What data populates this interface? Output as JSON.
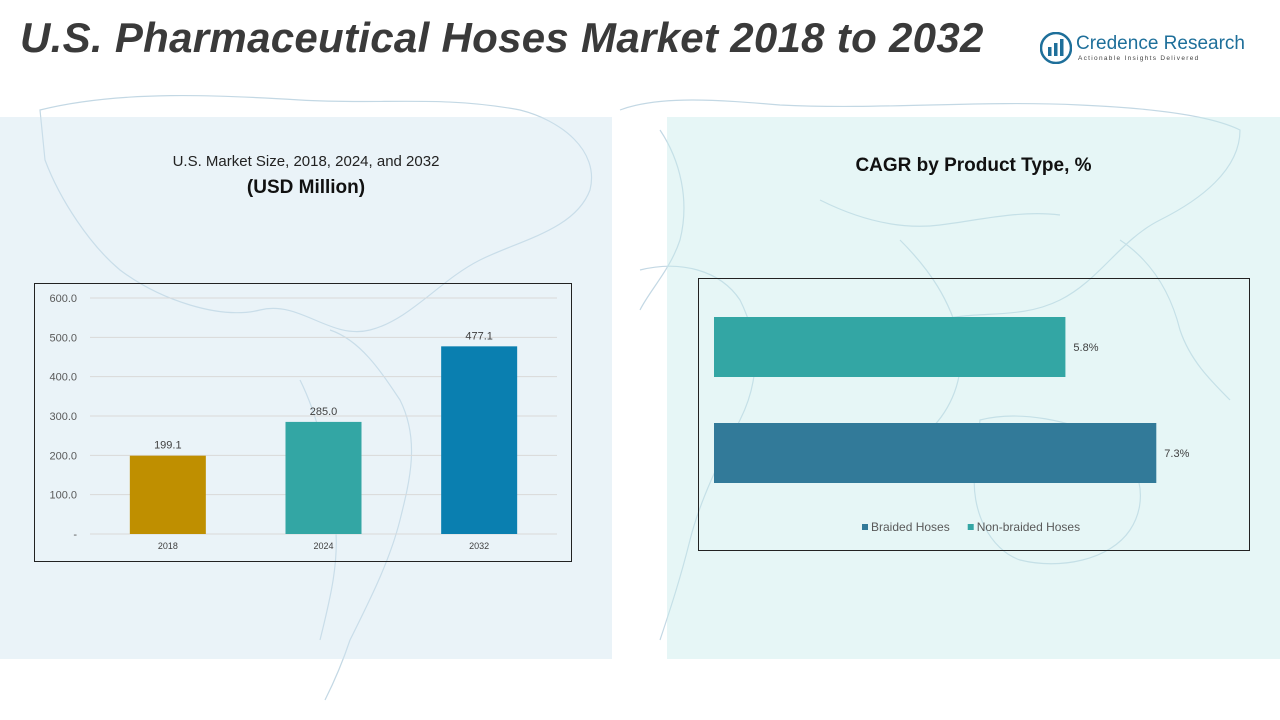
{
  "title": "U.S. Pharmaceutical Hoses Market 2018 to 2032",
  "brand": {
    "name": "Credence Research",
    "tagline": "Actionable Insights Delivered"
  },
  "left_panel": {
    "subtitle": "U.S. Market Size, 2018, 2024, and 2032",
    "unit": "(USD Million)"
  },
  "right_panel": {
    "title": "CAGR by Product Type, %"
  },
  "colors": {
    "bar_2018": "#bf8f00",
    "bar_2024": "#33a6a4",
    "bar_2032": "#0a7fb0",
    "braided": "#327a99",
    "non_braided": "#33a6a4",
    "brand": "#1e6f9a"
  },
  "chart_data": [
    {
      "type": "bar",
      "categories": [
        "2018",
        "2024",
        "2032"
      ],
      "values": [
        199.1,
        285.0,
        477.1
      ],
      "value_labels": [
        "199.1",
        "285.0",
        "477.1"
      ],
      "y_ticks": [
        "-",
        "100.0",
        "200.0",
        "300.0",
        "400.0",
        "500.0",
        "600.0"
      ],
      "ylim": [
        0,
        600
      ],
      "grid": true
    },
    {
      "type": "bar",
      "orientation": "horizontal",
      "series": [
        {
          "name": "Non-braided Hoses",
          "value": 5.8,
          "label": "5.8%"
        },
        {
          "name": "Braided Hoses",
          "value": 7.3,
          "label": "7.3%"
        }
      ],
      "legend_order": [
        "Braided Hoses",
        "Non-braided Hoses"
      ],
      "legend_position": "bottom",
      "xlim": [
        0,
        8.5
      ],
      "grid": false
    }
  ]
}
